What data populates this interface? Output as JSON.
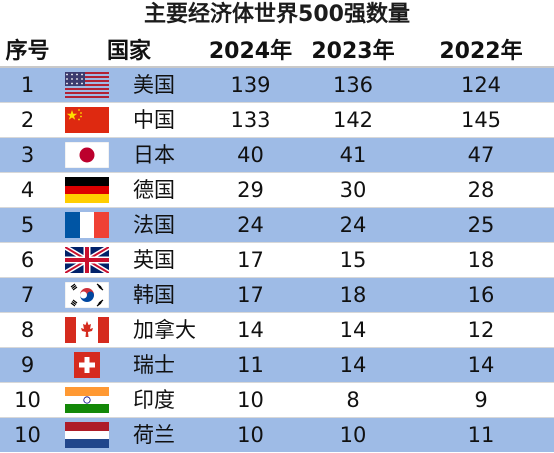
{
  "title": "主要经济体世界500强数量",
  "headers": [
    "序号",
    "国家",
    "2024年",
    "2023年",
    "2022年"
  ],
  "rows": [
    {
      "rank": "1",
      "country": "美国",
      "flag": "us-flag-icon",
      "y2024": "139",
      "y2023": "136",
      "y2022": "124"
    },
    {
      "rank": "2",
      "country": "中国",
      "flag": "cn-flag-icon",
      "y2024": "133",
      "y2023": "142",
      "y2022": "145"
    },
    {
      "rank": "3",
      "country": "日本",
      "flag": "jp-flag-icon",
      "y2024": "40",
      "y2023": "41",
      "y2022": "47"
    },
    {
      "rank": "4",
      "country": "德国",
      "flag": "de-flag-icon",
      "y2024": "29",
      "y2023": "30",
      "y2022": "28"
    },
    {
      "rank": "5",
      "country": "法国",
      "flag": "fr-flag-icon",
      "y2024": "24",
      "y2023": "24",
      "y2022": "25"
    },
    {
      "rank": "6",
      "country": "英国",
      "flag": "gb-flag-icon",
      "y2024": "17",
      "y2023": "15",
      "y2022": "18"
    },
    {
      "rank": "7",
      "country": "韩国",
      "flag": "kr-flag-icon",
      "y2024": "17",
      "y2023": "18",
      "y2022": "16"
    },
    {
      "rank": "8",
      "country": "加拿大",
      "flag": "ca-flag-icon",
      "y2024": "14",
      "y2023": "14",
      "y2022": "12"
    },
    {
      "rank": "9",
      "country": "瑞士",
      "flag": "ch-flag-icon",
      "y2024": "11",
      "y2023": "14",
      "y2022": "14"
    },
    {
      "rank": "10",
      "country": "印度",
      "flag": "in-flag-icon",
      "y2024": "10",
      "y2023": "8",
      "y2022": "9"
    },
    {
      "rank": "10",
      "country": "荷兰",
      "flag": "nl-flag-icon",
      "y2024": "10",
      "y2023": "10",
      "y2022": "11"
    }
  ],
  "colors": {
    "stripe": "#9ebbe6",
    "plain": "#ffffff"
  }
}
